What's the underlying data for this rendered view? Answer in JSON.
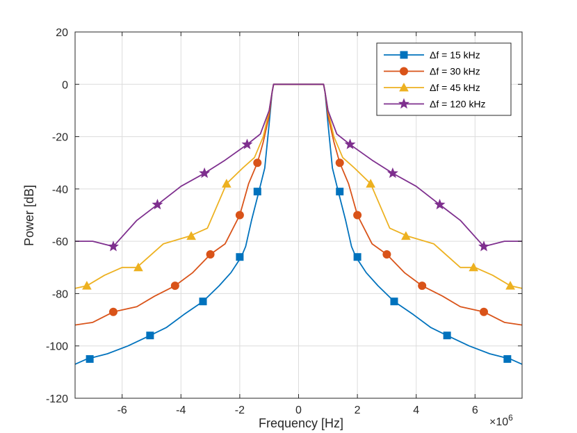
{
  "chart_data": {
    "type": "line",
    "title": "",
    "xlabel": "Frequency [Hz]",
    "ylabel": "Power [dB]",
    "x_multiplier_label": "×10",
    "x_multiplier_exp": "6",
    "xlim": [
      -7.6,
      7.6
    ],
    "ylim": [
      -120,
      20
    ],
    "xticks": [
      -6,
      -4,
      -2,
      0,
      2,
      4,
      6
    ],
    "xtick_labels": [
      "-6",
      "-4",
      "-2",
      "0",
      "2",
      "4",
      "6"
    ],
    "yticks": [
      -120,
      -100,
      -80,
      -60,
      -40,
      -20,
      0,
      20
    ],
    "ytick_labels": [
      "-120",
      "-100",
      "-80",
      "-60",
      "-40",
      "-20",
      "0",
      "20"
    ],
    "grid": true,
    "legend_position": "top-right",
    "series": [
      {
        "name": "Δf  = 15 kHz",
        "color": "#0072BD",
        "marker": "square",
        "x": [
          -7.6,
          -7.2,
          -6.5,
          -5.8,
          -5.05,
          -4.5,
          -3.9,
          -3.25,
          -2.7,
          -2.3,
          -1.95,
          -1.8,
          -1.6,
          -1.35,
          -1.15,
          -1.0,
          -0.9,
          -0.85,
          0.85,
          0.9,
          1.0,
          1.15,
          1.35,
          1.6,
          1.8,
          1.95,
          2.3,
          2.7,
          3.25,
          3.9,
          4.5,
          5.05,
          5.8,
          6.5,
          7.2,
          7.6
        ],
        "y": [
          -107,
          -105,
          -103,
          -100,
          -96,
          -93,
          -88,
          -83,
          -77,
          -72,
          -66,
          -62,
          -52,
          -41,
          -32,
          -15,
          -3,
          0,
          0,
          -3,
          -15,
          -32,
          -41,
          -52,
          -62,
          -66,
          -72,
          -77,
          -83,
          -88,
          -93,
          -96,
          -100,
          -103,
          -105,
          -107
        ],
        "markers_x": [
          -7.1,
          -5.05,
          -3.25,
          -2.0,
          -1.4,
          1.4,
          2.0,
          3.25,
          5.05,
          7.1
        ],
        "markers_y": [
          -105,
          -96,
          -83,
          -66,
          -41,
          -41,
          -66,
          -83,
          -96,
          -105
        ]
      },
      {
        "name": "Δf  = 30 kHz",
        "color": "#D95319",
        "marker": "circle",
        "x": [
          -7.6,
          -7.0,
          -6.3,
          -5.5,
          -4.9,
          -4.2,
          -3.6,
          -3.0,
          -2.5,
          -2.0,
          -1.7,
          -1.4,
          -1.2,
          -1.0,
          -0.9,
          -0.85,
          0.85,
          0.9,
          1.0,
          1.2,
          1.4,
          1.7,
          2.0,
          2.5,
          3.0,
          3.6,
          4.2,
          4.9,
          5.5,
          6.3,
          7.0,
          7.6
        ],
        "y": [
          -92,
          -91,
          -87,
          -85,
          -81,
          -77,
          -72,
          -65,
          -61,
          -50,
          -38,
          -30,
          -22,
          -12,
          -3,
          0,
          0,
          -3,
          -12,
          -22,
          -30,
          -38,
          -50,
          -61,
          -65,
          -72,
          -77,
          -81,
          -85,
          -87,
          -91,
          -92
        ],
        "markers_x": [
          -6.3,
          -4.2,
          -3.0,
          -2.0,
          -1.4,
          1.4,
          2.0,
          3.0,
          4.2,
          6.3
        ],
        "markers_y": [
          -87,
          -77,
          -65,
          -50,
          -30,
          -30,
          -50,
          -65,
          -77,
          -87
        ]
      },
      {
        "name": "Δf  = 45 kHz",
        "color": "#EDB120",
        "marker": "triangle",
        "x": [
          -7.6,
          -7.2,
          -6.6,
          -6.0,
          -5.5,
          -4.6,
          -3.7,
          -3.1,
          -2.45,
          -1.9,
          -1.5,
          -1.2,
          -1.0,
          -0.9,
          -0.85,
          0.85,
          0.9,
          1.0,
          1.2,
          1.5,
          1.9,
          2.45,
          3.1,
          3.7,
          4.6,
          5.5,
          6.0,
          6.6,
          7.2,
          7.6
        ],
        "y": [
          -78,
          -77,
          -73,
          -70,
          -70,
          -61,
          -58,
          -55,
          -38,
          -32,
          -28,
          -20,
          -10,
          -3,
          0,
          0,
          -3,
          -10,
          -20,
          -28,
          -32,
          -38,
          -55,
          -58,
          -61,
          -70,
          -70,
          -73,
          -77,
          -78
        ],
        "markers_x": [
          -7.2,
          -5.45,
          -3.65,
          -2.45,
          2.45,
          3.65,
          5.95,
          7.2
        ],
        "markers_y": [
          -77,
          -70,
          -58,
          -38,
          -38,
          -58,
          -70,
          -77
        ]
      },
      {
        "name": "Δf  = 120 kHz",
        "color": "#7E2F8E",
        "marker": "star",
        "x": [
          -7.6,
          -7.0,
          -6.3,
          -5.5,
          -4.8,
          -4.0,
          -3.2,
          -2.5,
          -1.75,
          -1.3,
          -1.0,
          -0.9,
          -0.85,
          0.85,
          0.9,
          1.0,
          1.3,
          1.75,
          2.5,
          3.2,
          4.0,
          4.8,
          5.5,
          6.3,
          7.0,
          7.6
        ],
        "y": [
          -60,
          -60,
          -62,
          -52,
          -46,
          -39,
          -34,
          -29,
          -23,
          -19,
          -10,
          -3,
          0,
          0,
          -3,
          -10,
          -19,
          -23,
          -29,
          -34,
          -39,
          -46,
          -52,
          -62,
          -60,
          -60
        ],
        "markers_x": [
          -6.3,
          -4.8,
          -3.2,
          -1.75,
          1.75,
          3.2,
          4.8,
          6.3
        ],
        "markers_y": [
          -62,
          -46,
          -34,
          -23,
          -23,
          -34,
          -46,
          -62
        ]
      }
    ]
  }
}
